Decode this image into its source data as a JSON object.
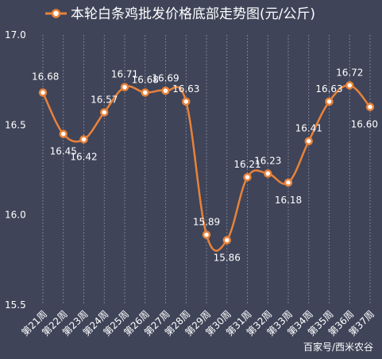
{
  "chart_data": {
    "type": "line",
    "title": "本轮白条鸡批发价格底部走势图(元/公斤)",
    "categories": [
      "第21周",
      "第22周",
      "第23周",
      "第24周",
      "第25周",
      "第26周",
      "第27周",
      "第28周",
      "第29周",
      "第30周",
      "第31周",
      "第32周",
      "第33周",
      "第34周",
      "第35周",
      "第36周",
      "第37周"
    ],
    "series": [
      {
        "name": "本轮白条鸡批发价格底部走势图(元/公斤)",
        "values": [
          16.68,
          16.45,
          16.42,
          16.57,
          16.71,
          16.68,
          16.69,
          16.63,
          15.89,
          15.86,
          16.21,
          16.23,
          16.18,
          16.41,
          16.63,
          16.72,
          16.6
        ],
        "labels": [
          "16.68",
          "16.45",
          "16.42",
          "16.57",
          "16.71",
          "16.68",
          "16.69",
          "16.63",
          "15.89",
          "15.86",
          "16.21",
          "16.23",
          "16.18",
          "16.41",
          "16.63",
          "16.72",
          "16.60"
        ]
      }
    ],
    "y_ticks": [
      "15.5",
      "16.0",
      "16.5",
      "17.0"
    ],
    "ylim": [
      15.5,
      17.0
    ],
    "grid": "vertical-dashed",
    "legend": "top",
    "colors": {
      "background": "#3f4458",
      "line": "#e8823a",
      "marker_fill": "#ffffff",
      "grid": "#8a8e9e"
    }
  },
  "watermark": "百家号/西米农谷"
}
